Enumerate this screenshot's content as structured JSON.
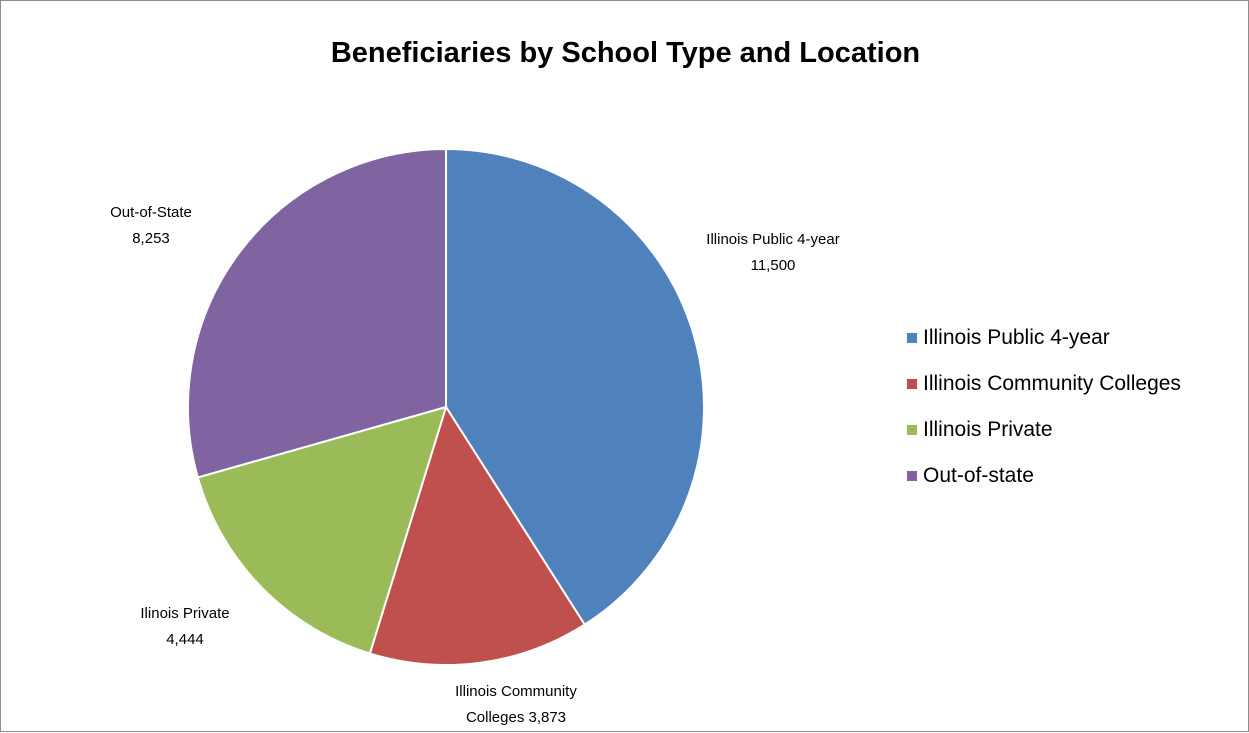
{
  "chart_data": {
    "type": "pie",
    "title": "Beneficiaries by School Type and Location",
    "slices": [
      {
        "label": "Illinois Public 4-year",
        "value": 11500,
        "value_text": "11,500",
        "color": "#4F81BD",
        "data_label": [
          "Illinois Public 4-year",
          "11,500"
        ]
      },
      {
        "label": "Illinois Community Colleges",
        "value": 3873,
        "value_text": "3,873",
        "color": "#C0504D",
        "data_label": [
          "Illinois Community",
          "Colleges 3,873"
        ]
      },
      {
        "label": "Illinois Private",
        "value": 4444,
        "value_text": "4,444",
        "color": "#9BBB59",
        "data_label": [
          "Ilinois Private",
          "4,444"
        ]
      },
      {
        "label": "Out-of-state",
        "value": 8253,
        "value_text": "8,253",
        "color": "#8064A2",
        "data_label": [
          "Out-of-State",
          "8,253"
        ]
      }
    ],
    "legend_position": "right",
    "start_angle": "12 o'clock",
    "direction": "clockwise"
  }
}
